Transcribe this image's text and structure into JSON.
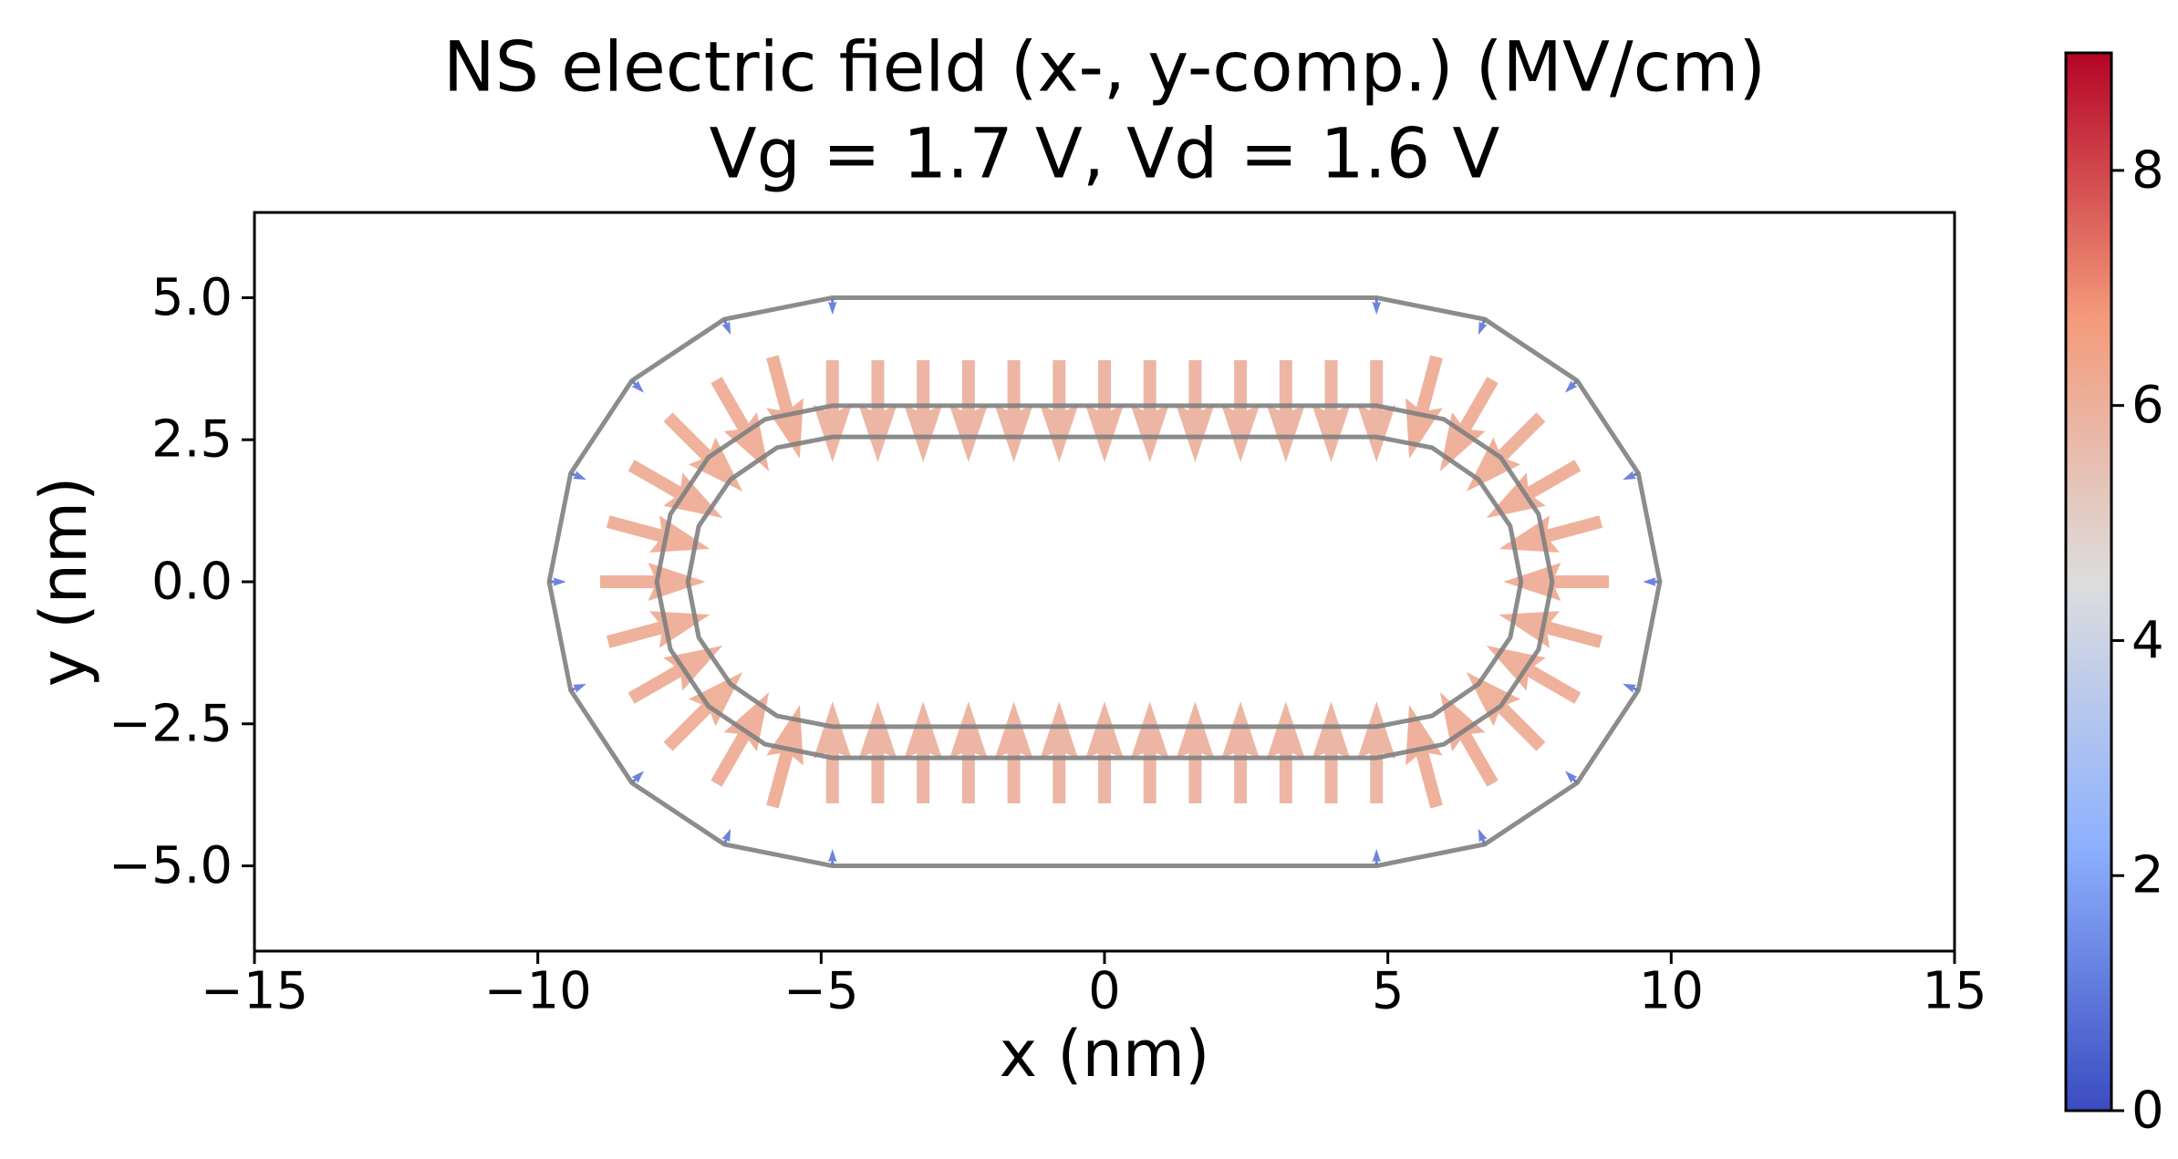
{
  "chart_data": {
    "type": "quiver",
    "title": "NS electric field (x-, y-comp.) (MV/cm)",
    "subtitle": "Vg = 1.7 V, Vd = 1.6 V",
    "xlabel": "x (nm)",
    "ylabel": "y (nm)",
    "xlim": [
      -15,
      15
    ],
    "ylim": [
      -6.5,
      6.5
    ],
    "xticks": [
      {
        "value": -15,
        "label": "−15"
      },
      {
        "value": -10,
        "label": "−10"
      },
      {
        "value": -5,
        "label": "−5"
      },
      0,
      5,
      10,
      15
    ],
    "yticks": [
      {
        "value": -5,
        "label": "−5.0"
      },
      {
        "value": -2.5,
        "label": "−2.5"
      },
      {
        "value": 0,
        "label": "0.0"
      },
      {
        "value": 2.5,
        "label": "2.5"
      },
      {
        "value": 5,
        "label": "5.0"
      }
    ],
    "colormap": "coolwarm",
    "clim": [
      0,
      9
    ],
    "cticks": [
      0,
      2,
      4,
      6,
      8
    ],
    "contour_color": "#808080",
    "contours": [
      {
        "x": [
          4.8,
          6.71,
          8.34,
          9.42,
          9.8,
          9.42,
          8.34,
          6.71,
          4.8,
          -4.8,
          -6.71,
          -8.34,
          -9.42,
          -9.8,
          -9.42,
          -8.34,
          -6.71,
          -4.8
        ],
        "y": [
          5,
          4.62,
          3.54,
          1.91,
          0,
          -1.91,
          -3.54,
          -4.62,
          -5,
          -5,
          -4.62,
          -3.54,
          -1.91,
          0,
          1.91,
          3.54,
          4.62,
          5
        ]
      },
      {
        "x": [
          4.8,
          5.99,
          6.99,
          7.66,
          7.9,
          7.66,
          6.99,
          5.99,
          4.8,
          -4.8,
          -5.99,
          -6.99,
          -7.66,
          -7.9,
          -7.66,
          -6.99,
          -5.99,
          -4.8
        ],
        "y": [
          3.1,
          2.86,
          2.19,
          1.19,
          0,
          -1.19,
          -2.19,
          -2.86,
          -3.1,
          -3.1,
          -2.86,
          -2.19,
          -1.19,
          0,
          1.19,
          2.19,
          2.86,
          3.1
        ]
      },
      {
        "x": [
          4.8,
          5.78,
          6.6,
          7.16,
          7.35,
          7.16,
          6.6,
          5.78,
          4.8,
          -4.8,
          -5.78,
          -6.6,
          -7.16,
          -7.35,
          -7.16,
          -6.6,
          -5.78,
          -4.8
        ],
        "y": [
          2.55,
          2.36,
          1.8,
          0.98,
          0,
          -0.98,
          -1.8,
          -2.36,
          -2.55,
          -2.55,
          -2.36,
          -1.8,
          -0.98,
          0,
          0.98,
          1.8,
          2.36,
          2.55
        ]
      }
    ],
    "arrows": {
      "x": [
        -4.8,
        -4,
        -3.2,
        -2.4,
        -1.6,
        -0.8,
        0,
        0.8,
        1.6,
        2.4,
        3.2,
        4,
        4.8,
        -4.8,
        -4,
        -3.2,
        -2.4,
        -1.6,
        -0.8,
        0,
        0.8,
        1.6,
        2.4,
        3.2,
        4,
        4.8,
        5.86,
        6.85,
        7.7,
        8.35,
        8.76,
        8.9,
        8.76,
        8.35,
        7.7,
        6.85,
        5.86,
        -5.86,
        -6.85,
        -7.7,
        -8.35,
        -8.76,
        -8.9,
        -8.76,
        -8.35,
        -7.7,
        -6.85,
        -5.86,
        4.8,
        6.71,
        8.34,
        9.42,
        9.8,
        9.42,
        8.34,
        6.71,
        4.8,
        -4.8,
        -6.71,
        -8.34,
        -9.42,
        -9.8,
        -9.42,
        -8.34,
        -6.71,
        -4.8
      ],
      "y": [
        3.9,
        3.9,
        3.9,
        3.9,
        3.9,
        3.9,
        3.9,
        3.9,
        3.9,
        3.9,
        3.9,
        3.9,
        3.9,
        -3.9,
        -3.9,
        -3.9,
        -3.9,
        -3.9,
        -3.9,
        -3.9,
        -3.9,
        -3.9,
        -3.9,
        -3.9,
        -3.9,
        -3.9,
        3.96,
        3.55,
        2.9,
        2.05,
        1.06,
        0,
        -1.06,
        -2.05,
        -2.9,
        -3.55,
        -3.96,
        3.96,
        3.55,
        2.9,
        2.05,
        1.06,
        0,
        -1.06,
        -2.05,
        -2.9,
        -3.55,
        -3.96,
        5,
        4.62,
        3.54,
        1.91,
        0,
        -1.91,
        -3.54,
        -4.62,
        -5,
        5,
        4.62,
        3.54,
        1.91,
        0,
        -1.91,
        -3.54,
        -4.62,
        -5
      ],
      "u": [
        0,
        0,
        0,
        0,
        0,
        0,
        0,
        0,
        0,
        0,
        0,
        0,
        0,
        0,
        0,
        0,
        0,
        0,
        0,
        0,
        0,
        0,
        0,
        0,
        0,
        0,
        -1.61,
        -3.1,
        -4.38,
        -5.37,
        -5.99,
        -6.2,
        -5.99,
        -5.37,
        -4.38,
        -3.1,
        -1.61,
        1.61,
        3.1,
        4.38,
        5.37,
        5.99,
        6.2,
        5.99,
        5.37,
        4.38,
        3.1,
        1.61,
        0,
        -0.38,
        -0.71,
        -0.92,
        -1,
        -0.92,
        -0.71,
        -0.38,
        0,
        0,
        0.38,
        0.71,
        0.92,
        1,
        0.92,
        0.71,
        0.38,
        0
      ],
      "v": [
        -6,
        -6,
        -6,
        -6,
        -6,
        -6,
        -6,
        -6,
        -6,
        -6,
        -6,
        -6,
        -6,
        6,
        6,
        6,
        6,
        6,
        6,
        6,
        6,
        6,
        6,
        6,
        6,
        6,
        -5.99,
        -5.37,
        -4.38,
        -3.1,
        -1.61,
        0,
        1.61,
        3.1,
        4.38,
        5.37,
        5.99,
        -5.99,
        -5.37,
        -4.38,
        -3.1,
        -1.61,
        0,
        1.61,
        3.1,
        4.38,
        5.37,
        5.99,
        -1,
        -0.92,
        -0.71,
        -0.38,
        0,
        0.38,
        0.71,
        0.92,
        1,
        -1,
        -0.92,
        -0.71,
        -0.38,
        0,
        0.38,
        0.71,
        0.92,
        1
      ]
    }
  }
}
